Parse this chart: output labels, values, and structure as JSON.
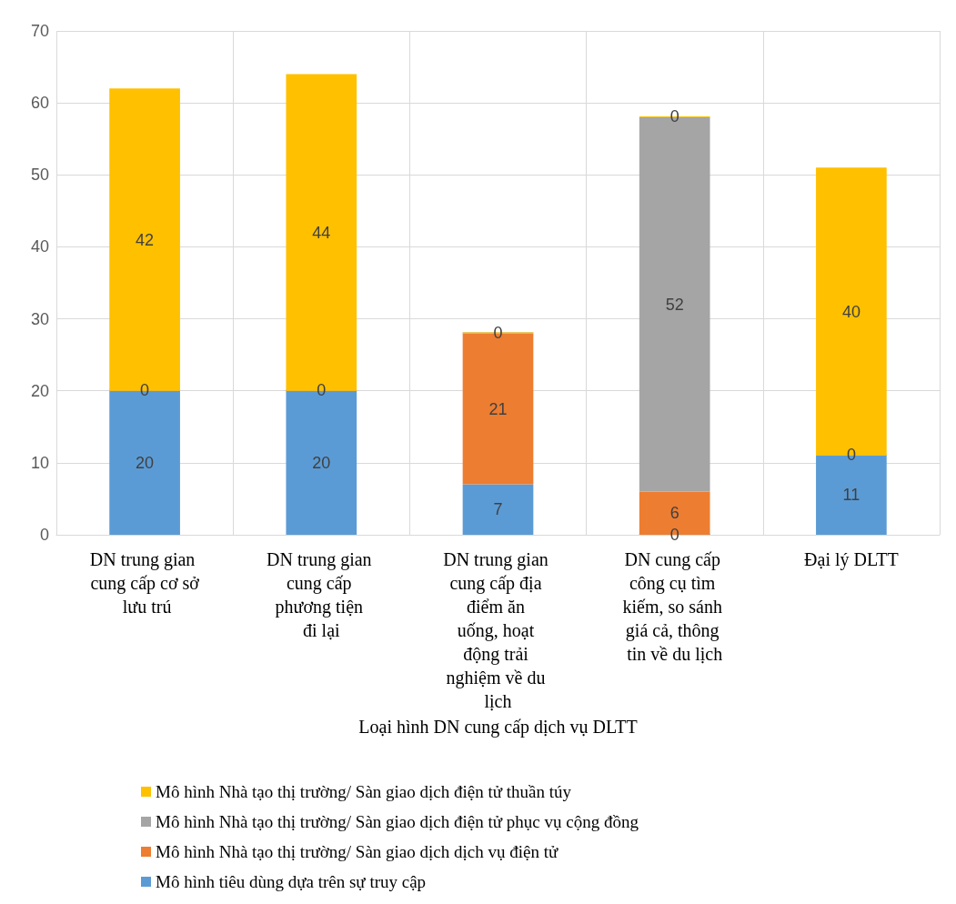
{
  "chart_data": {
    "type": "bar",
    "stacked": true,
    "xlabel": "Loại hình DN cung cấp dịch vụ DLTT",
    "categories": [
      "DN trung gian cung cấp cơ sở lưu trú",
      "DN trung gian cung cấp phương tiện đi lại",
      "DN trung gian cung cấp địa điểm ăn uống, hoạt động trải nghiệm về du lịch",
      "DN cung cấp công cụ tìm kiếm, so sánh giá cả, thông tin về du lịch",
      "Đại lý DLTT"
    ],
    "series": [
      {
        "name": "Mô hình tiêu dùng dựa trên sự truy cập",
        "color": "#5b9bd5",
        "values": [
          20,
          20,
          7,
          0,
          11
        ],
        "value_labels": [
          "20",
          "20",
          "7",
          "0",
          "11"
        ]
      },
      {
        "name": "Mô hình Nhà tạo thị trường/ Sàn giao dịch dịch vụ điện tử",
        "color": "#ed7d31",
        "values": [
          0,
          0,
          21,
          6,
          0
        ],
        "value_labels": [
          "0",
          "0",
          "21",
          "6",
          "0"
        ]
      },
      {
        "name": "Mô hình Nhà tạo thị trường/ Sàn giao dịch điện tử phục vụ cộng đồng",
        "color": "#a5a5a5",
        "values": [
          0,
          0,
          0,
          52,
          0
        ],
        "value_labels": [
          null,
          null,
          "0",
          "52",
          null
        ]
      },
      {
        "name": "Mô hình Nhà tạo thị trường/ Sàn giao dịch điện tử thuần túy",
        "color": "#ffc000",
        "values": [
          42,
          44,
          0,
          0,
          40
        ],
        "value_labels": [
          "42",
          "44",
          null,
          "0",
          "40"
        ]
      }
    ],
    "ylim": [
      0,
      70
    ],
    "yticks": [
      0,
      10,
      20,
      30,
      40,
      50,
      60,
      70
    ],
    "grid": true,
    "legend": "bottom"
  }
}
